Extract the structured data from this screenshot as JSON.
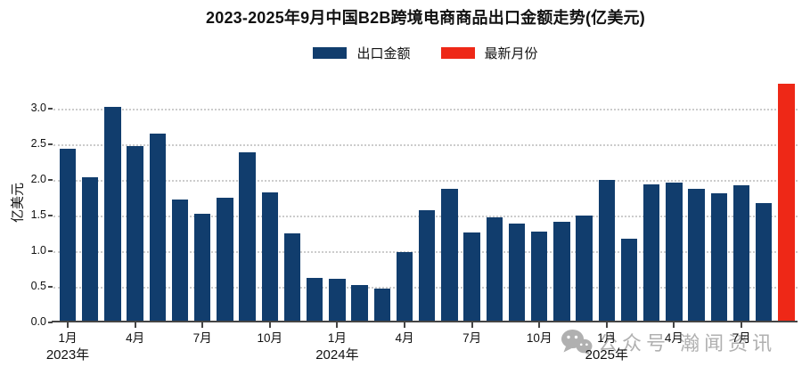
{
  "title": "2023-2025年9月中国B2B跨境电商商品出口金额走势(亿美元)",
  "legend": {
    "items": [
      {
        "label": "出口金额",
        "color": "#113d6d"
      },
      {
        "label": "最新月份",
        "color": "#ee2817"
      }
    ]
  },
  "watermark": {
    "text": "公众号 瀚闻资讯"
  },
  "colors": {
    "bar": "#113d6d",
    "latest_bar": "#ee2817",
    "grid": "#cccccc",
    "axis": "#454545",
    "watermark": "#9a9a9a"
  },
  "chart_data": {
    "type": "bar",
    "title": "2023-2025年9月中国B2B跨境电商商品出口金额走势(亿美元)",
    "ylabel": "亿美元",
    "xlabel": "",
    "ylim": [
      0,
      3.36
    ],
    "yticks": [
      "0.0",
      "0.5",
      "1.0",
      "1.5",
      "2.0",
      "2.5",
      "3.0"
    ],
    "grid": "horizontal-dotted",
    "legend_position": "top-center",
    "series_name": "出口金额",
    "latest_series_name": "最新月份",
    "latest_index": 32,
    "x": [
      "2023年1月",
      "2023年2月",
      "2023年3月",
      "2023年4月",
      "2023年5月",
      "2023年6月",
      "2023年7月",
      "2023年8月",
      "2023年9月",
      "2023年10月",
      "2023年11月",
      "2023年12月",
      "2024年1月",
      "2024年2月",
      "2024年3月",
      "2024年4月",
      "2024年5月",
      "2024年6月",
      "2024年7月",
      "2024年8月",
      "2024年9月",
      "2024年10月",
      "2024年11月",
      "2024年12月",
      "2025年1月",
      "2025年2月",
      "2025年3月",
      "2025年4月",
      "2025年5月",
      "2025年6月",
      "2025年7月",
      "2025年8月",
      "2025年9月"
    ],
    "values": [
      2.43,
      2.04,
      3.02,
      2.47,
      2.65,
      1.72,
      1.52,
      1.75,
      2.38,
      1.83,
      1.25,
      0.62,
      0.61,
      0.53,
      0.48,
      0.99,
      1.57,
      1.87,
      1.26,
      1.47,
      1.39,
      1.27,
      1.41,
      1.5,
      2.0,
      1.17,
      1.94,
      1.96,
      1.87,
      1.81,
      1.93,
      1.67,
      3.35
    ],
    "x_tick_indices": [
      0,
      3,
      6,
      9,
      12,
      15,
      18,
      21,
      24,
      27,
      30
    ],
    "x_tick_labels": [
      "1月",
      "4月",
      "7月",
      "10月",
      "1月",
      "4月",
      "7月",
      "10月",
      "1月",
      "4月",
      "7月"
    ],
    "year_labels": [
      {
        "index": 0,
        "text": "2023年"
      },
      {
        "index": 12,
        "text": "2024年"
      },
      {
        "index": 24,
        "text": "2025年"
      }
    ]
  }
}
